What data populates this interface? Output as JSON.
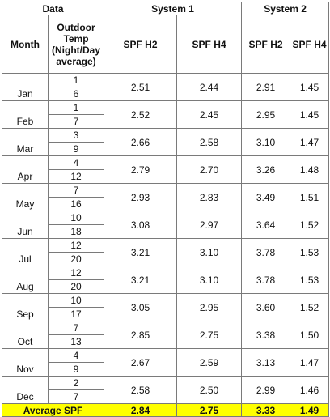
{
  "headers": {
    "data": "Data",
    "system1": "System 1",
    "system2": "System 2",
    "month": "Month",
    "outdoor_temp": "Outdoor Temp (Night/Day average)",
    "spf_h2": "SPF H2",
    "spf_h4": "SPF H4"
  },
  "rows": [
    {
      "month": "Jan",
      "night": "1",
      "day": "6",
      "s1_h2": "2.51",
      "s1_h4": "2.44",
      "s2_h2": "2.91",
      "s2_h4": "1.45"
    },
    {
      "month": "Feb",
      "night": "1",
      "day": "7",
      "s1_h2": "2.52",
      "s1_h4": "2.45",
      "s2_h2": "2.95",
      "s2_h4": "1.45"
    },
    {
      "month": "Mar",
      "night": "3",
      "day": "9",
      "s1_h2": "2.66",
      "s1_h4": "2.58",
      "s2_h2": "3.10",
      "s2_h4": "1.47"
    },
    {
      "month": "Apr",
      "night": "4",
      "day": "12",
      "s1_h2": "2.79",
      "s1_h4": "2.70",
      "s2_h2": "3.26",
      "s2_h4": "1.48"
    },
    {
      "month": "May",
      "night": "7",
      "day": "16",
      "s1_h2": "2.93",
      "s1_h4": "2.83",
      "s2_h2": "3.49",
      "s2_h4": "1.51"
    },
    {
      "month": "Jun",
      "night": "10",
      "day": "18",
      "s1_h2": "3.08",
      "s1_h4": "2.97",
      "s2_h2": "3.64",
      "s2_h4": "1.52"
    },
    {
      "month": "Jul",
      "night": "12",
      "day": "20",
      "s1_h2": "3.21",
      "s1_h4": "3.10",
      "s2_h2": "3.78",
      "s2_h4": "1.53"
    },
    {
      "month": "Aug",
      "night": "12",
      "day": "20",
      "s1_h2": "3.21",
      "s1_h4": "3.10",
      "s2_h2": "3.78",
      "s2_h4": "1.53"
    },
    {
      "month": "Sep",
      "night": "10",
      "day": "17",
      "s1_h2": "3.05",
      "s1_h4": "2.95",
      "s2_h2": "3.60",
      "s2_h4": "1.52"
    },
    {
      "month": "Oct",
      "night": "7",
      "day": "13",
      "s1_h2": "2.85",
      "s1_h4": "2.75",
      "s2_h2": "3.38",
      "s2_h4": "1.50"
    },
    {
      "month": "Nov",
      "night": "4",
      "day": "9",
      "s1_h2": "2.67",
      "s1_h4": "2.59",
      "s2_h2": "3.13",
      "s2_h4": "1.47"
    },
    {
      "month": "Dec",
      "night": "2",
      "day": "7",
      "s1_h2": "2.58",
      "s1_h4": "2.50",
      "s2_h2": "2.99",
      "s2_h4": "1.46"
    }
  ],
  "average": {
    "label": "Average SPF",
    "s1_h2": "2.84",
    "s1_h4": "2.75",
    "s2_h2": "3.33",
    "s2_h4": "1.49"
  },
  "colors": {
    "highlight": "#ffff00",
    "border": "#7a7a7a"
  }
}
